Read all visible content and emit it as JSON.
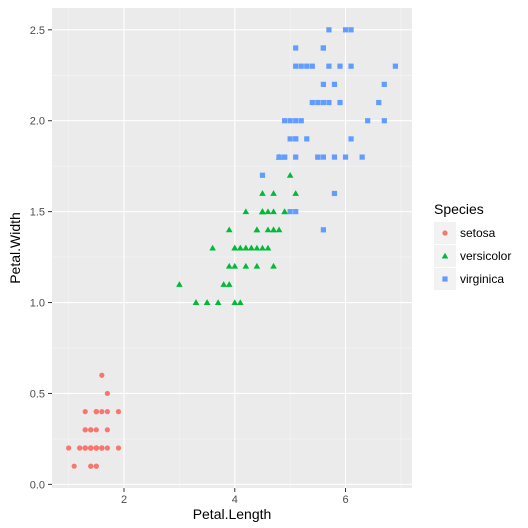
{
  "chart_data": {
    "type": "scatter",
    "xlabel": "Petal.Length",
    "ylabel": "Petal.Width",
    "xlim": [
      0.7,
      7.2
    ],
    "ylim": [
      -0.02,
      2.62
    ],
    "x_ticks": [
      2,
      4,
      6
    ],
    "x_tick_labels": [
      "2",
      "4",
      "6"
    ],
    "y_ticks": [
      0.0,
      0.5,
      1.0,
      1.5,
      2.0,
      2.5
    ],
    "y_tick_labels": [
      "0.0",
      "0.5",
      "1.0",
      "1.5",
      "2.0",
      "2.5"
    ],
    "grid": true,
    "legend_title": "Species",
    "legend_position": "right",
    "series": [
      {
        "name": "setosa",
        "shape": "circle",
        "color": "#F8766D",
        "points": [
          [
            1.4,
            0.2
          ],
          [
            1.4,
            0.2
          ],
          [
            1.3,
            0.2
          ],
          [
            1.5,
            0.2
          ],
          [
            1.4,
            0.2
          ],
          [
            1.7,
            0.4
          ],
          [
            1.4,
            0.3
          ],
          [
            1.5,
            0.2
          ],
          [
            1.4,
            0.2
          ],
          [
            1.5,
            0.1
          ],
          [
            1.5,
            0.2
          ],
          [
            1.6,
            0.2
          ],
          [
            1.4,
            0.1
          ],
          [
            1.1,
            0.1
          ],
          [
            1.2,
            0.2
          ],
          [
            1.5,
            0.4
          ],
          [
            1.3,
            0.4
          ],
          [
            1.4,
            0.3
          ],
          [
            1.7,
            0.3
          ],
          [
            1.5,
            0.3
          ],
          [
            1.7,
            0.2
          ],
          [
            1.5,
            0.4
          ],
          [
            1.0,
            0.2
          ],
          [
            1.7,
            0.5
          ],
          [
            1.9,
            0.2
          ],
          [
            1.6,
            0.2
          ],
          [
            1.6,
            0.4
          ],
          [
            1.5,
            0.2
          ],
          [
            1.4,
            0.2
          ],
          [
            1.6,
            0.2
          ],
          [
            1.6,
            0.2
          ],
          [
            1.5,
            0.4
          ],
          [
            1.5,
            0.1
          ],
          [
            1.4,
            0.2
          ],
          [
            1.5,
            0.2
          ],
          [
            1.2,
            0.2
          ],
          [
            1.3,
            0.2
          ],
          [
            1.4,
            0.1
          ],
          [
            1.3,
            0.2
          ],
          [
            1.5,
            0.2
          ],
          [
            1.3,
            0.3
          ],
          [
            1.3,
            0.3
          ],
          [
            1.3,
            0.2
          ],
          [
            1.6,
            0.6
          ],
          [
            1.9,
            0.4
          ],
          [
            1.4,
            0.3
          ],
          [
            1.6,
            0.2
          ],
          [
            1.4,
            0.2
          ],
          [
            1.5,
            0.2
          ],
          [
            1.4,
            0.2
          ]
        ]
      },
      {
        "name": "versicolor",
        "shape": "triangle",
        "color": "#00BA38",
        "points": [
          [
            4.7,
            1.4
          ],
          [
            4.5,
            1.5
          ],
          [
            4.9,
            1.5
          ],
          [
            4.0,
            1.3
          ],
          [
            4.6,
            1.5
          ],
          [
            4.5,
            1.3
          ],
          [
            4.7,
            1.6
          ],
          [
            3.3,
            1.0
          ],
          [
            4.6,
            1.3
          ],
          [
            3.9,
            1.4
          ],
          [
            3.5,
            1.0
          ],
          [
            4.2,
            1.5
          ],
          [
            4.0,
            1.0
          ],
          [
            4.7,
            1.4
          ],
          [
            3.6,
            1.3
          ],
          [
            4.4,
            1.4
          ],
          [
            4.5,
            1.5
          ],
          [
            4.1,
            1.0
          ],
          [
            4.5,
            1.5
          ],
          [
            3.9,
            1.1
          ],
          [
            4.8,
            1.8
          ],
          [
            4.0,
            1.3
          ],
          [
            4.9,
            1.5
          ],
          [
            4.7,
            1.2
          ],
          [
            4.3,
            1.3
          ],
          [
            4.4,
            1.4
          ],
          [
            4.8,
            1.4
          ],
          [
            5.0,
            1.7
          ],
          [
            4.5,
            1.5
          ],
          [
            3.5,
            1.0
          ],
          [
            3.8,
            1.1
          ],
          [
            3.7,
            1.0
          ],
          [
            3.9,
            1.2
          ],
          [
            5.1,
            1.6
          ],
          [
            4.5,
            1.5
          ],
          [
            4.5,
            1.6
          ],
          [
            4.7,
            1.5
          ],
          [
            4.4,
            1.3
          ],
          [
            4.1,
            1.3
          ],
          [
            4.0,
            1.3
          ],
          [
            4.4,
            1.2
          ],
          [
            4.6,
            1.4
          ],
          [
            4.0,
            1.2
          ],
          [
            3.3,
            1.0
          ],
          [
            4.2,
            1.3
          ],
          [
            4.2,
            1.2
          ],
          [
            4.2,
            1.3
          ],
          [
            4.3,
            1.3
          ],
          [
            3.0,
            1.1
          ],
          [
            4.1,
            1.3
          ]
        ]
      },
      {
        "name": "virginica",
        "shape": "square",
        "color": "#619CFF",
        "points": [
          [
            6.0,
            2.5
          ],
          [
            5.1,
            1.9
          ],
          [
            5.9,
            2.1
          ],
          [
            5.6,
            1.8
          ],
          [
            5.8,
            2.2
          ],
          [
            6.6,
            2.1
          ],
          [
            4.5,
            1.7
          ],
          [
            6.3,
            1.8
          ],
          [
            5.8,
            1.8
          ],
          [
            6.1,
            2.5
          ],
          [
            5.1,
            2.0
          ],
          [
            5.3,
            1.9
          ],
          [
            5.5,
            2.1
          ],
          [
            5.0,
            2.0
          ],
          [
            5.1,
            2.4
          ],
          [
            5.3,
            2.3
          ],
          [
            5.5,
            1.8
          ],
          [
            6.7,
            2.2
          ],
          [
            6.9,
            2.3
          ],
          [
            5.0,
            1.5
          ],
          [
            5.7,
            2.3
          ],
          [
            4.9,
            2.0
          ],
          [
            6.7,
            2.0
          ],
          [
            4.9,
            1.8
          ],
          [
            5.7,
            2.1
          ],
          [
            6.0,
            1.8
          ],
          [
            4.8,
            1.8
          ],
          [
            4.9,
            1.8
          ],
          [
            5.6,
            2.1
          ],
          [
            5.8,
            1.6
          ],
          [
            6.1,
            1.9
          ],
          [
            6.4,
            2.0
          ],
          [
            5.6,
            2.2
          ],
          [
            5.1,
            1.5
          ],
          [
            5.6,
            1.4
          ],
          [
            6.1,
            2.3
          ],
          [
            5.6,
            2.4
          ],
          [
            5.5,
            1.8
          ],
          [
            4.8,
            1.8
          ],
          [
            5.4,
            2.1
          ],
          [
            5.6,
            2.4
          ],
          [
            5.1,
            2.3
          ],
          [
            5.1,
            1.9
          ],
          [
            5.9,
            2.3
          ],
          [
            5.7,
            2.5
          ],
          [
            5.2,
            2.3
          ],
          [
            5.0,
            1.9
          ],
          [
            5.2,
            2.0
          ],
          [
            5.4,
            2.3
          ],
          [
            5.1,
            1.8
          ]
        ]
      }
    ]
  }
}
